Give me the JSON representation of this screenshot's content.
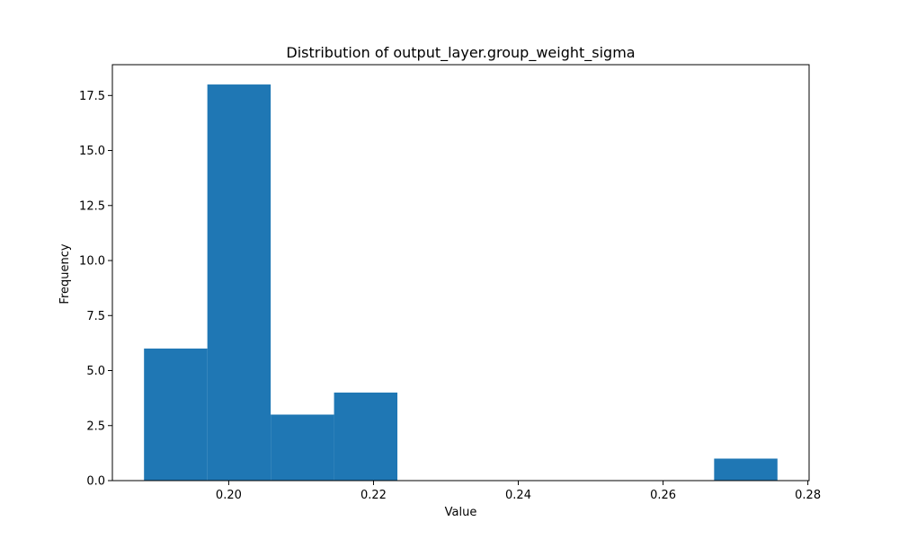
{
  "chart_data": {
    "type": "bar",
    "title": "Distribution of output_layer.group_weight_sigma",
    "xlabel": "Value",
    "ylabel": "Frequency",
    "bar_color": "#1f77b4",
    "bins": [
      {
        "start": 0.1883,
        "end": 0.19705,
        "count": 6
      },
      {
        "start": 0.19705,
        "end": 0.2058,
        "count": 18
      },
      {
        "start": 0.2058,
        "end": 0.21455,
        "count": 3
      },
      {
        "start": 0.21455,
        "end": 0.2233,
        "count": 4
      },
      {
        "start": 0.2233,
        "end": 0.23205,
        "count": 0
      },
      {
        "start": 0.23205,
        "end": 0.2408,
        "count": 0
      },
      {
        "start": 0.2408,
        "end": 0.24955,
        "count": 0
      },
      {
        "start": 0.24955,
        "end": 0.2583,
        "count": 0
      },
      {
        "start": 0.2583,
        "end": 0.26705,
        "count": 0
      },
      {
        "start": 0.26705,
        "end": 0.2758,
        "count": 1
      }
    ],
    "xlim": [
      0.18393,
      0.28017
    ],
    "ylim": [
      0,
      18.9
    ],
    "xticks": [
      {
        "value": 0.2,
        "label": "0.20"
      },
      {
        "value": 0.22,
        "label": "0.22"
      },
      {
        "value": 0.24,
        "label": "0.24"
      },
      {
        "value": 0.26,
        "label": "0.26"
      },
      {
        "value": 0.28,
        "label": "0.28"
      }
    ],
    "yticks": [
      {
        "value": 0.0,
        "label": "0.0"
      },
      {
        "value": 2.5,
        "label": "2.5"
      },
      {
        "value": 5.0,
        "label": "5.0"
      },
      {
        "value": 7.5,
        "label": "7.5"
      },
      {
        "value": 10.0,
        "label": "10.0"
      },
      {
        "value": 12.5,
        "label": "12.5"
      },
      {
        "value": 15.0,
        "label": "15.0"
      },
      {
        "value": 17.5,
        "label": "17.5"
      }
    ],
    "grid": false,
    "legend": "none"
  }
}
